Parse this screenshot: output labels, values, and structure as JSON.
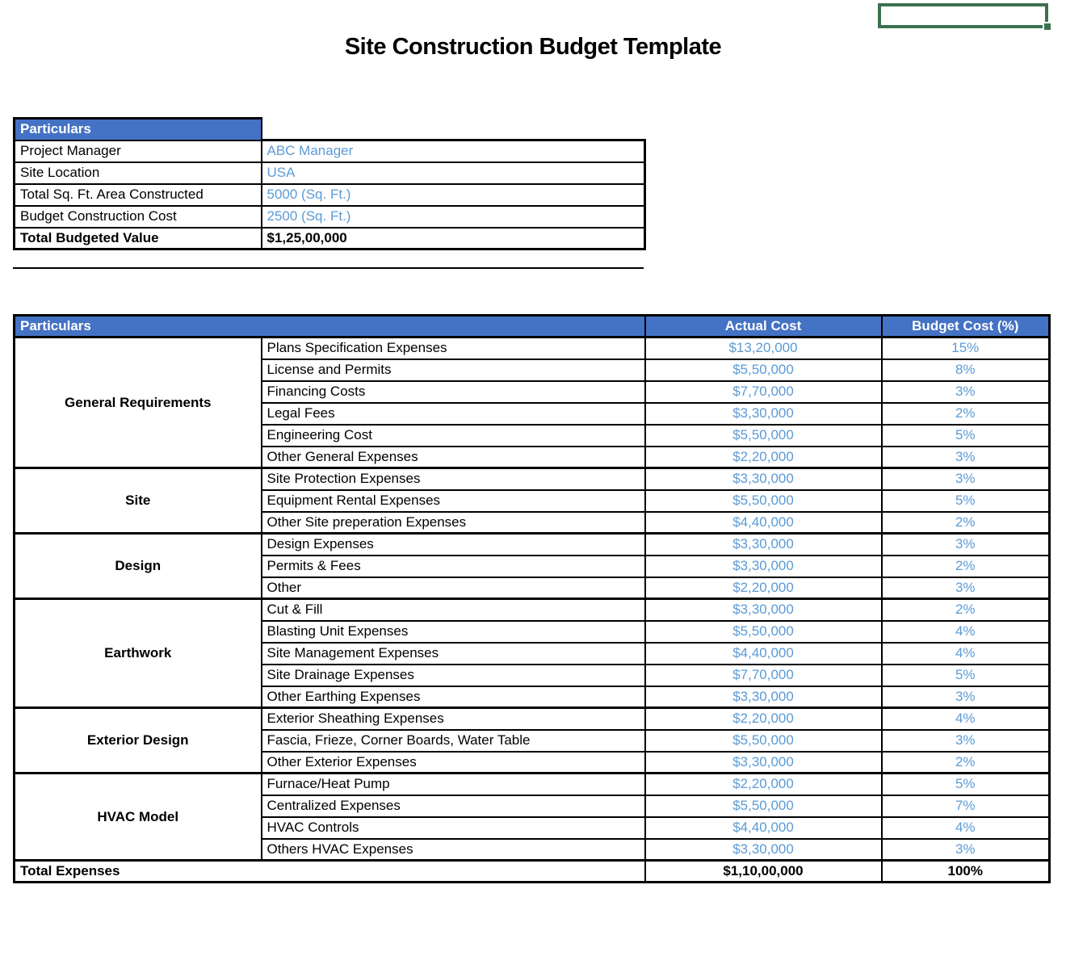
{
  "title": "Site Construction Budget Template",
  "info_table": {
    "header": "Particulars",
    "rows": [
      {
        "label": "Project Manager",
        "value": "ABC Manager",
        "bold": false
      },
      {
        "label": "Site Location",
        "value": "USA",
        "bold": false
      },
      {
        "label": "Total Sq. Ft. Area Constructed",
        "value": "5000 (Sq. Ft.)",
        "bold": false
      },
      {
        "label": "Budget Construction Cost",
        "value": "2500 (Sq. Ft.)",
        "bold": false
      },
      {
        "label": "Total Budgeted Value",
        "value": "$1,25,00,000",
        "bold": true
      }
    ]
  },
  "budget_table": {
    "headers": {
      "particulars": "Particulars",
      "actual_cost": "Actual Cost",
      "budget_cost": "Budget Cost (%)"
    },
    "groups": [
      {
        "category": "General Requirements",
        "items": [
          {
            "name": "Plans Specification Expenses",
            "actual": "$13,20,000",
            "budget": "15%"
          },
          {
            "name": "License and Permits",
            "actual": "$5,50,000",
            "budget": "8%"
          },
          {
            "name": "Financing Costs",
            "actual": "$7,70,000",
            "budget": "3%"
          },
          {
            "name": "Legal Fees",
            "actual": "$3,30,000",
            "budget": "2%"
          },
          {
            "name": "Engineering Cost",
            "actual": "$5,50,000",
            "budget": "5%"
          },
          {
            "name": "Other General Expenses",
            "actual": "$2,20,000",
            "budget": "3%"
          }
        ]
      },
      {
        "category": "Site",
        "items": [
          {
            "name": "Site Protection Expenses",
            "actual": "$3,30,000",
            "budget": "3%"
          },
          {
            "name": "Equipment Rental Expenses",
            "actual": "$5,50,000",
            "budget": "5%"
          },
          {
            "name": "Other Site preperation Expenses",
            "actual": "$4,40,000",
            "budget": "2%"
          }
        ]
      },
      {
        "category": "Design",
        "items": [
          {
            "name": "Design Expenses",
            "actual": "$3,30,000",
            "budget": "3%"
          },
          {
            "name": "Permits & Fees",
            "actual": "$3,30,000",
            "budget": "2%"
          },
          {
            "name": "Other",
            "actual": "$2,20,000",
            "budget": "3%"
          }
        ]
      },
      {
        "category": "Earthwork",
        "items": [
          {
            "name": "Cut & Fill",
            "actual": "$3,30,000",
            "budget": "2%"
          },
          {
            "name": "Blasting Unit Expenses",
            "actual": "$5,50,000",
            "budget": "4%"
          },
          {
            "name": "Site Management Expenses",
            "actual": "$4,40,000",
            "budget": "4%"
          },
          {
            "name": "Site Drainage Expenses",
            "actual": "$7,70,000",
            "budget": "5%"
          },
          {
            "name": "Other Earthing Expenses",
            "actual": "$3,30,000",
            "budget": "3%"
          }
        ]
      },
      {
        "category": "Exterior Design",
        "items": [
          {
            "name": "Exterior Sheathing Expenses",
            "actual": "$2,20,000",
            "budget": "4%"
          },
          {
            "name": "Fascia, Frieze, Corner Boards, Water Table",
            "actual": "$5,50,000",
            "budget": "3%"
          },
          {
            "name": "Other Exterior Expenses",
            "actual": "$3,30,000",
            "budget": "2%"
          }
        ]
      },
      {
        "category": "HVAC Model",
        "items": [
          {
            "name": "Furnace/Heat Pump",
            "actual": "$2,20,000",
            "budget": "5%"
          },
          {
            "name": "Centralized Expenses",
            "actual": "$5,50,000",
            "budget": "7%"
          },
          {
            "name": "HVAC Controls",
            "actual": "$4,40,000",
            "budget": "4%"
          },
          {
            "name": "Others HVAC Expenses",
            "actual": "$3,30,000",
            "budget": "3%"
          }
        ]
      }
    ],
    "total": {
      "label": "Total Expenses",
      "actual": "$1,10,00,000",
      "budget": "100%"
    }
  },
  "colors": {
    "header_bg": "#4472C4",
    "header_text": "#FFFFFF",
    "accent_text": "#5B9BD5",
    "border": "#000000",
    "selection_green": "#3B7150"
  }
}
